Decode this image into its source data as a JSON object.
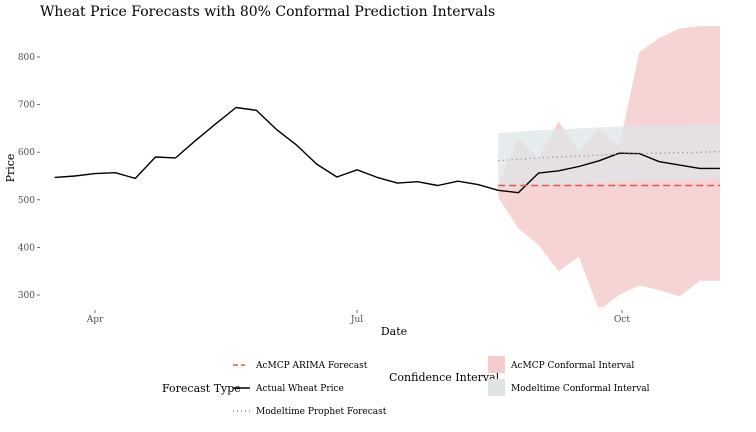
{
  "chart_data": {
    "type": "line",
    "title": "Wheat Price Forecasts with 80% Conformal Prediction Intervals",
    "xlabel": "Date",
    "ylabel": "Price",
    "x_ticks": [
      "Apr",
      "Jul",
      "Oct"
    ],
    "x_tick_dates": [
      "2024-04-01",
      "2024-07-01",
      "2024-10-01"
    ],
    "y_ticks": [
      300,
      400,
      500,
      600,
      700,
      800
    ],
    "ylim": [
      270,
      870
    ],
    "grid": false,
    "series": [
      {
        "name": "Actual Wheat Price",
        "style": "solid",
        "color": "#000000",
        "x": [
          "2024-03-18",
          "2024-03-25",
          "2024-04-01",
          "2024-04-08",
          "2024-04-15",
          "2024-04-22",
          "2024-04-29",
          "2024-05-06",
          "2024-05-13",
          "2024-05-20",
          "2024-05-27",
          "2024-06-03",
          "2024-06-10",
          "2024-06-17",
          "2024-06-24",
          "2024-07-01",
          "2024-07-08",
          "2024-07-15",
          "2024-07-22",
          "2024-07-29",
          "2024-08-05",
          "2024-08-12",
          "2024-08-19",
          "2024-08-26",
          "2024-09-02",
          "2024-09-09",
          "2024-09-16",
          "2024-09-23",
          "2024-09-30",
          "2024-10-07",
          "2024-10-14",
          "2024-10-21",
          "2024-10-28",
          "2024-11-04"
        ],
        "values": [
          547,
          550,
          555,
          557,
          545,
          590,
          588,
          625,
          660,
          694,
          688,
          648,
          615,
          575,
          548,
          563,
          547,
          535,
          538,
          530,
          539,
          532,
          520,
          515,
          556,
          561,
          570,
          582,
          598,
          597,
          580,
          573,
          566,
          566
        ]
      },
      {
        "name": "AcMCP ARIMA Forecast",
        "style": "dashed",
        "color": "#e15759",
        "x": [
          "2024-08-19",
          "2024-11-08"
        ],
        "values": [
          530,
          530
        ]
      },
      {
        "name": "Modeltime Prophet Forecast",
        "style": "dotted",
        "color": "#8c8c8c",
        "x": [
          "2024-08-19",
          "2024-08-26",
          "2024-09-02",
          "2024-09-09",
          "2024-09-16",
          "2024-09-23",
          "2024-09-30",
          "2024-10-07",
          "2024-10-14",
          "2024-10-21",
          "2024-10-28",
          "2024-11-04",
          "2024-11-08"
        ],
        "values": [
          582,
          585,
          588,
          590,
          592,
          594,
          596,
          597,
          598,
          599,
          600,
          601,
          601
        ]
      }
    ],
    "intervals": [
      {
        "name": "AcMCP Conformal Interval",
        "color": "#f4cccc",
        "x": [
          "2024-08-19",
          "2024-08-26",
          "2024-09-02",
          "2024-09-09",
          "2024-09-16",
          "2024-09-23",
          "2024-09-30",
          "2024-10-07",
          "2024-10-14",
          "2024-10-21",
          "2024-10-28",
          "2024-11-04",
          "2024-11-08"
        ],
        "lower": [
          505,
          440,
          405,
          350,
          380,
          268,
          300,
          320,
          310,
          297,
          330,
          330,
          330
        ],
        "upper": [
          530,
          630,
          585,
          665,
          600,
          650,
          610,
          810,
          840,
          860,
          865,
          865,
          865
        ]
      },
      {
        "name": "Modeltime Conformal Interval",
        "color": "#dde4e8",
        "x": [
          "2024-08-19",
          "2024-08-26",
          "2024-09-02",
          "2024-09-09",
          "2024-09-16",
          "2024-09-23",
          "2024-09-30",
          "2024-10-07",
          "2024-10-14",
          "2024-10-21",
          "2024-10-28",
          "2024-11-04",
          "2024-11-08"
        ],
        "lower": [
          525,
          528,
          530,
          532,
          534,
          536,
          538,
          540,
          541,
          542,
          543,
          544,
          544
        ],
        "upper": [
          640,
          643,
          646,
          648,
          650,
          652,
          654,
          655,
          656,
          657,
          658,
          659,
          659
        ]
      }
    ],
    "legend": {
      "position": "bottom",
      "forecast_type_title": "Forecast Type",
      "forecast_type_entries": [
        "AcMCP ARIMA Forecast",
        "Actual Wheat Price",
        "Modeltime Prophet Forecast"
      ],
      "confidence_title": "Confidence Interval",
      "confidence_entries": [
        "AcMCP Conformal Interval",
        "Modeltime Conformal Interval"
      ]
    }
  }
}
